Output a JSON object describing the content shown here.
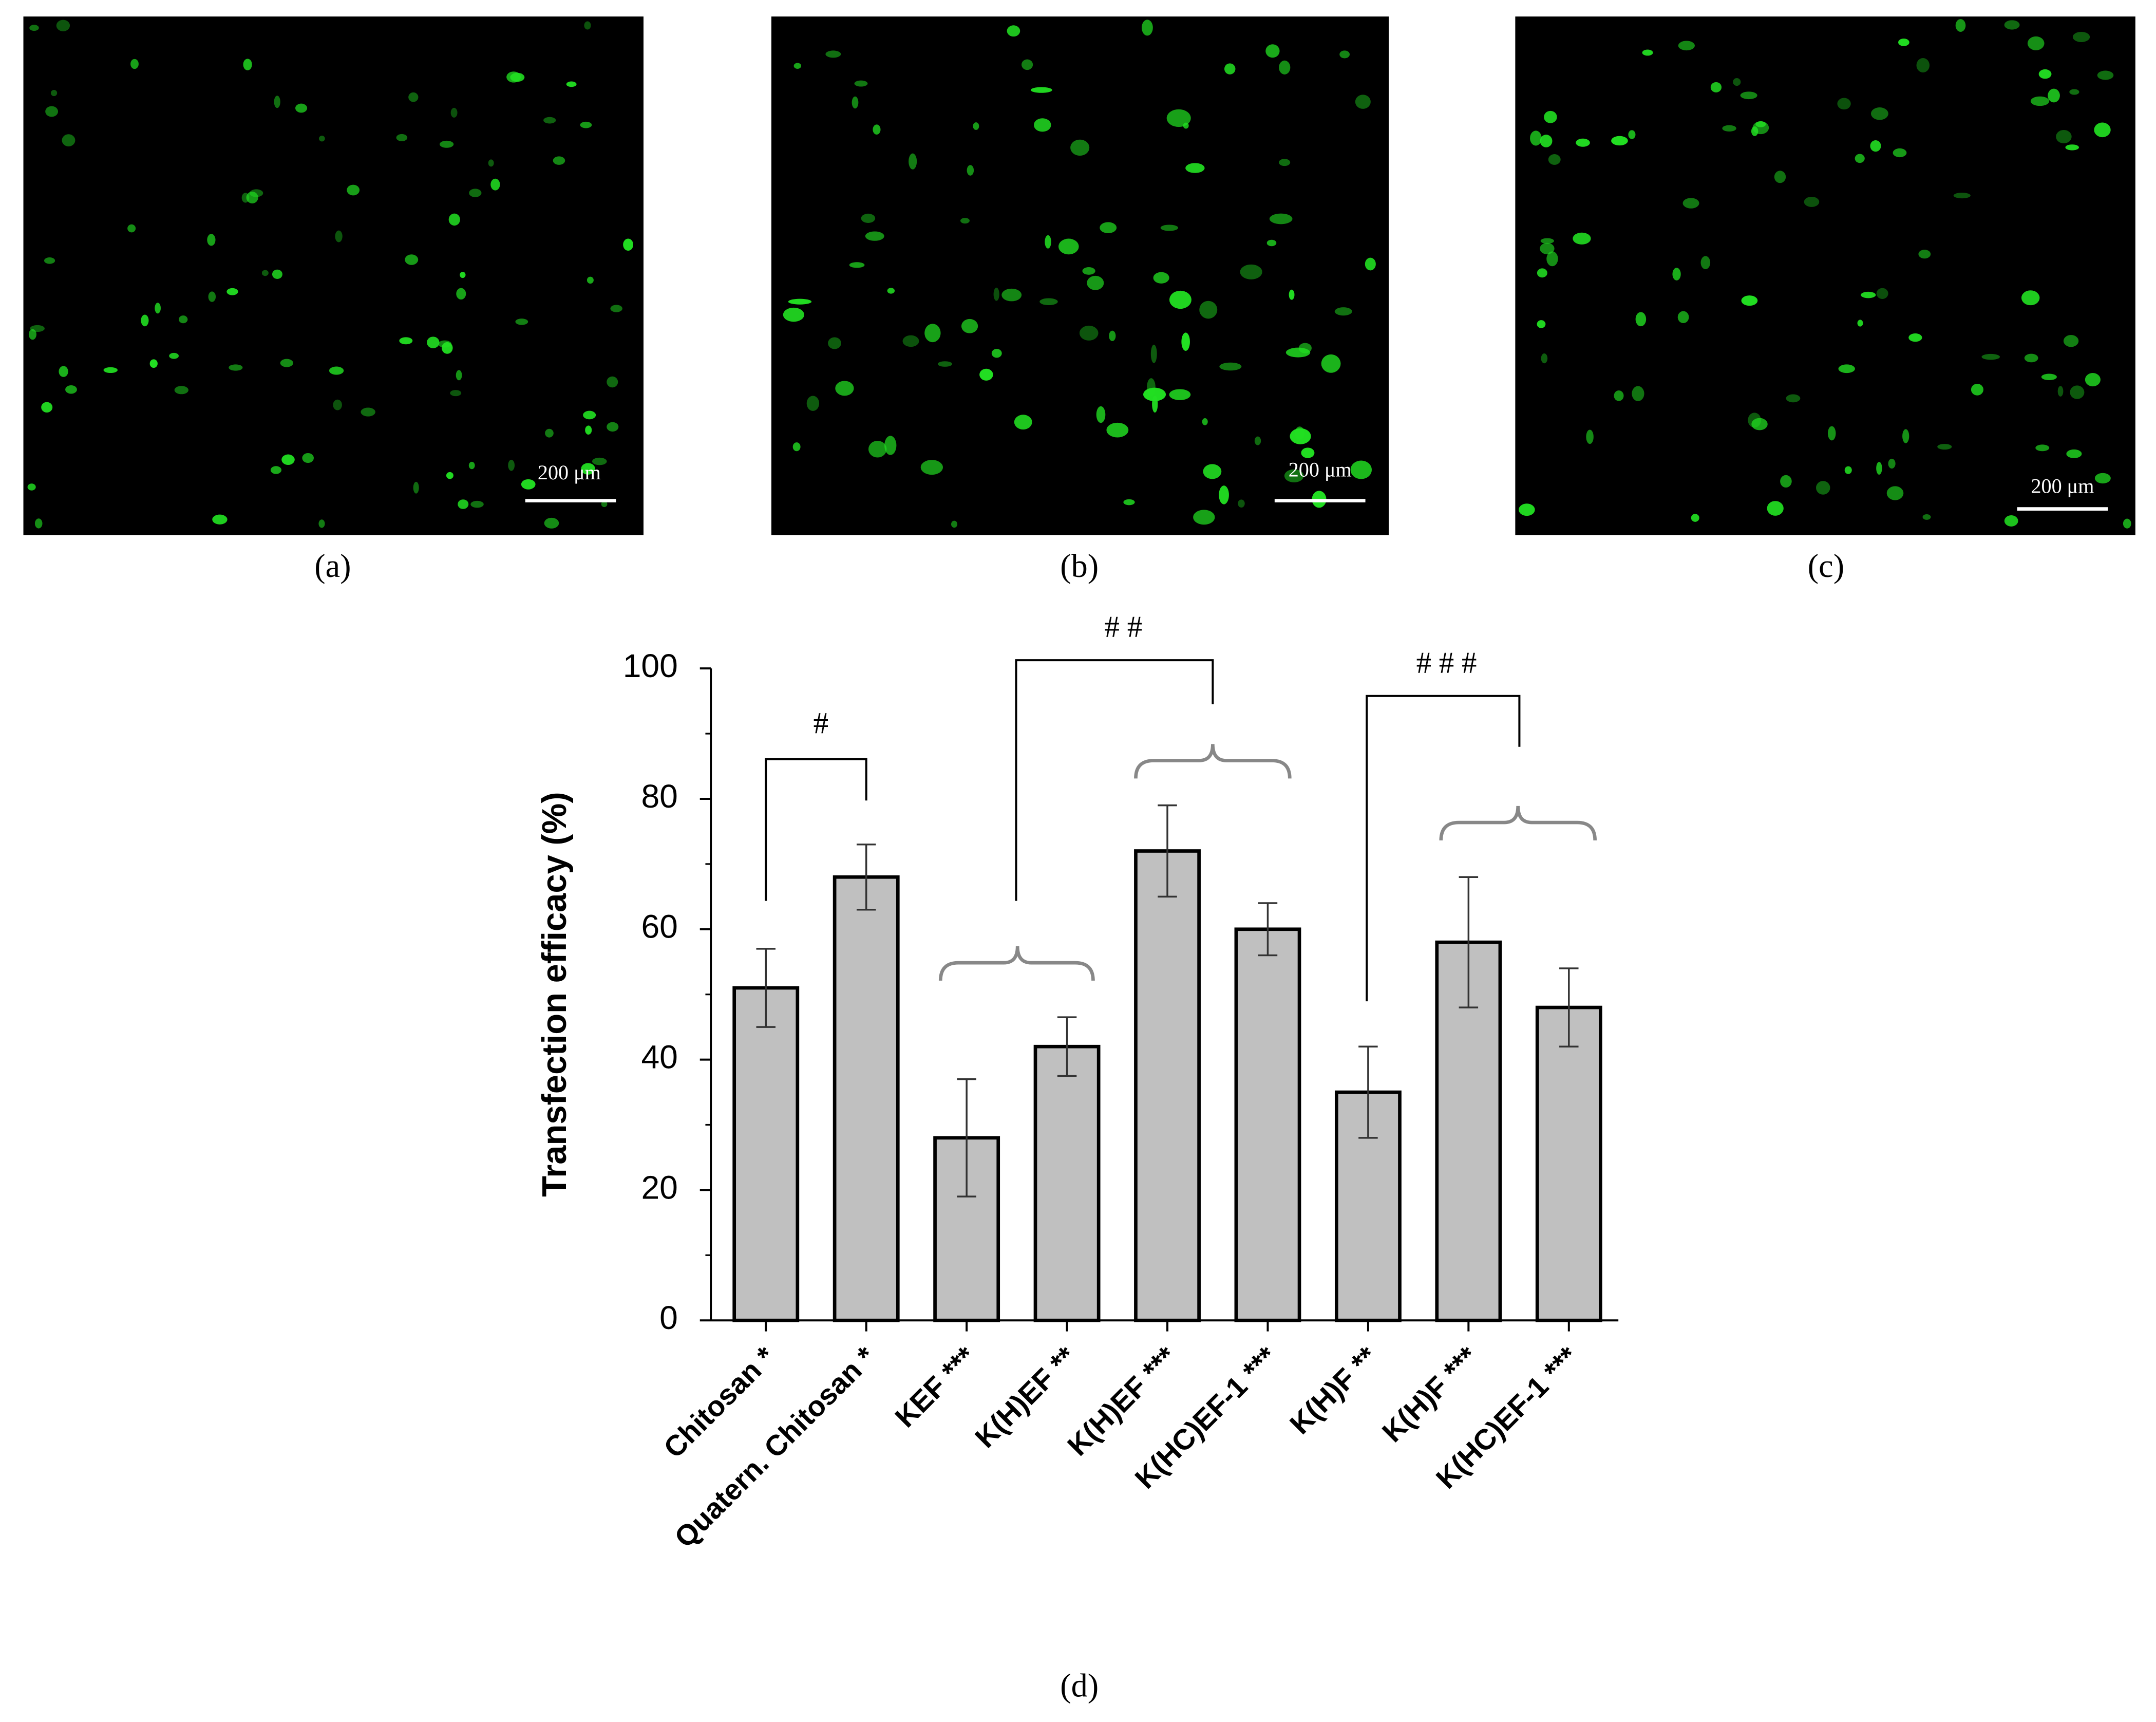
{
  "panel_labels": [
    "(a)",
    "(b)",
    "(c)",
    "(d)"
  ],
  "scale_bar_label": "200 μm",
  "chart_data": {
    "type": "bar",
    "y_label": "Transfection efficacy (%)",
    "categories": [
      "Chitosan *",
      "Quatern. Chitosan *",
      "KEF ***",
      "K(H)EF **",
      "K(H)EF ***",
      "K(HC)EF-1 ***",
      "K(H)F **",
      "K(H)F ***",
      "K(HC)EF-1 ***"
    ],
    "values": [
      51,
      68,
      28,
      42,
      72,
      60,
      35,
      58,
      48
    ],
    "errors": [
      6,
      5,
      9,
      4.5,
      7,
      4,
      7,
      10,
      6
    ],
    "color": "#c0c0c0",
    "ylim": [
      0,
      100
    ],
    "yticks": [
      0,
      20,
      40,
      60,
      80,
      100
    ],
    "minor_yticks": [
      10,
      30,
      50,
      70,
      90
    ],
    "annotations": [
      "#",
      "# #",
      "# # #"
    ]
  }
}
